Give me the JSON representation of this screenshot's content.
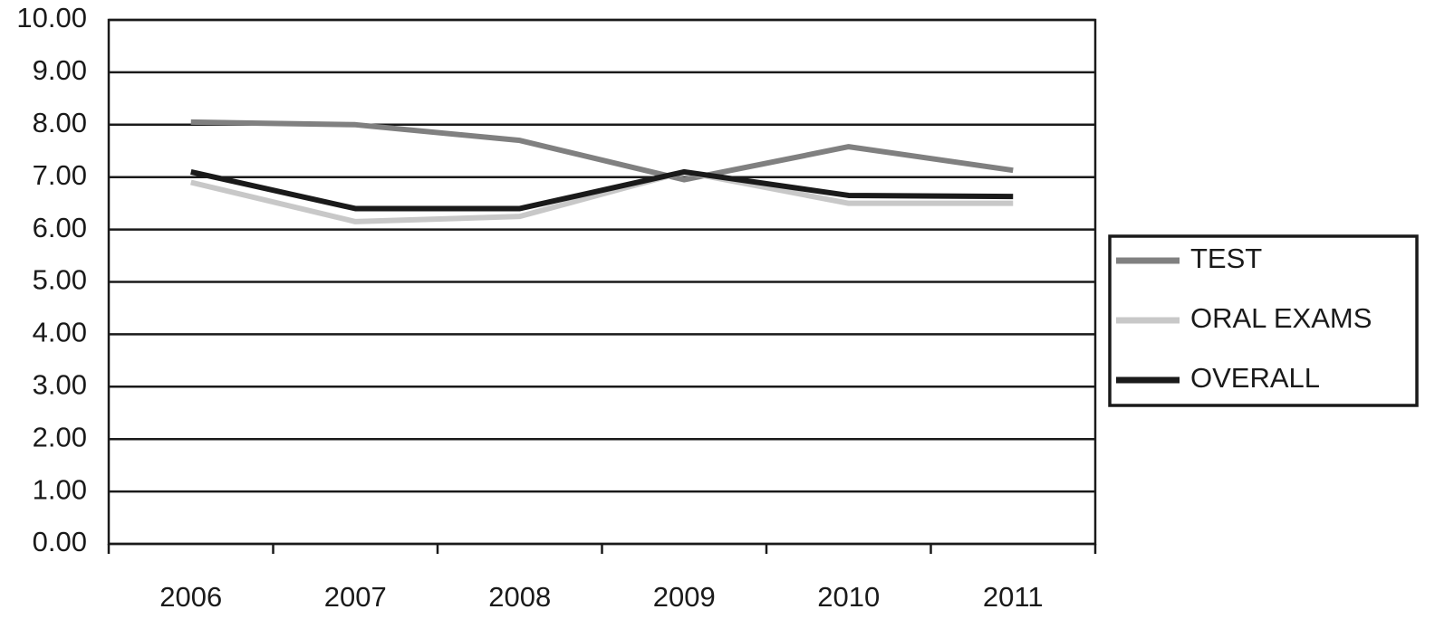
{
  "chart_data": {
    "type": "line",
    "categories": [
      "2006",
      "2007",
      "2008",
      "2009",
      "2010",
      "2011"
    ],
    "series": [
      {
        "name": "TEST",
        "color": "#808080",
        "values": [
          8.05,
          8.0,
          7.7,
          6.95,
          7.58,
          7.13
        ]
      },
      {
        "name": "ORAL EXAMS",
        "color": "#c8c8c8",
        "values": [
          6.9,
          6.15,
          6.25,
          7.1,
          6.5,
          6.5
        ]
      },
      {
        "name": "OVERALL",
        "color": "#1a1a1a",
        "values": [
          7.1,
          6.4,
          6.4,
          7.1,
          6.65,
          6.63
        ]
      }
    ],
    "ylim": [
      0,
      10
    ],
    "yticks": [
      {
        "value": 0,
        "label": "0.00"
      },
      {
        "value": 1,
        "label": "1.00"
      },
      {
        "value": 2,
        "label": "2.00"
      },
      {
        "value": 3,
        "label": "3.00"
      },
      {
        "value": 4,
        "label": "4.00"
      },
      {
        "value": 5,
        "label": "5.00"
      },
      {
        "value": 6,
        "label": "6.00"
      },
      {
        "value": 7,
        "label": "7.00"
      },
      {
        "value": 8,
        "label": "8.00"
      },
      {
        "value": 9,
        "label": "9.00"
      },
      {
        "value": 10,
        "label": "10.00"
      }
    ],
    "grid": true,
    "legend": "right"
  }
}
